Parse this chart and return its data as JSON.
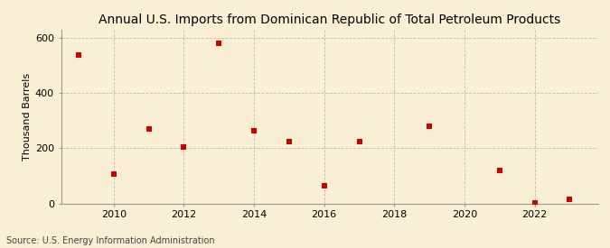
{
  "title": "Annual U.S. Imports from Dominican Republic of Total Petroleum Products",
  "ylabel": "Thousand Barrels",
  "source": "Source: U.S. Energy Information Administration",
  "background_color": "#faefd4",
  "years": [
    2009,
    2010,
    2011,
    2012,
    2013,
    2014,
    2015,
    2016,
    2017,
    2019,
    2021,
    2022,
    2023
  ],
  "values": [
    540,
    105,
    270,
    205,
    580,
    265,
    225,
    65,
    225,
    280,
    120,
    2,
    15
  ],
  "marker_color": "#cc0000",
  "marker": "s",
  "marker_size": 4,
  "xlim": [
    2008.5,
    2023.8
  ],
  "ylim": [
    0,
    630
  ],
  "yticks": [
    0,
    200,
    400,
    600
  ],
  "xticks": [
    2010,
    2012,
    2014,
    2016,
    2018,
    2020,
    2022
  ],
  "grid_color": "#bbbbbb",
  "title_fontsize": 10,
  "label_fontsize": 8,
  "tick_fontsize": 8,
  "source_fontsize": 7
}
